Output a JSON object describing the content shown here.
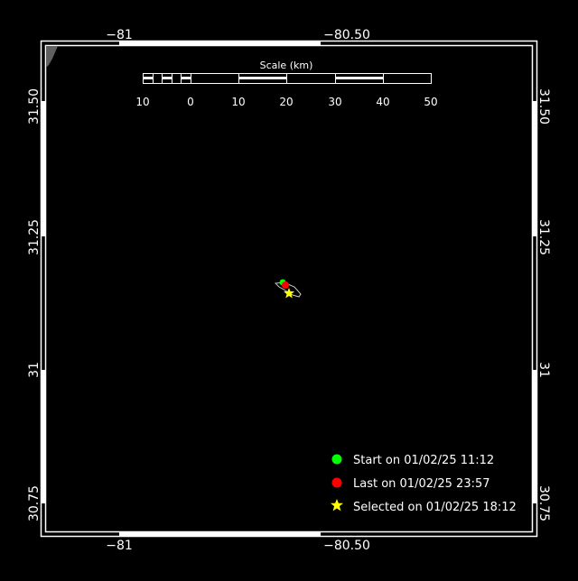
{
  "map": {
    "lon_ticks": [
      {
        "value": -81,
        "label": "−81"
      },
      {
        "value": -80.5,
        "label": "−80.50"
      }
    ],
    "lat_ticks": [
      {
        "value": 31.5,
        "label": "31.50"
      },
      {
        "value": 31.25,
        "label": "31.25"
      },
      {
        "value": 31,
        "label": "31"
      },
      {
        "value": 30.75,
        "label": "30.75"
      }
    ],
    "scale_bar": {
      "title": "Scale (km)",
      "labels": [
        "10",
        "0",
        "10",
        "20",
        "30",
        "40",
        "50"
      ]
    },
    "legend": [
      {
        "label": "Start on 01/02/25 11:12",
        "symbol": "circle",
        "color": "#00ff00"
      },
      {
        "label": "Last on 01/02/25 23:57",
        "symbol": "circle",
        "color": "#ff0000"
      },
      {
        "label": "Selected on 01/02/25 18:12",
        "symbol": "star",
        "color": "#ffff00"
      }
    ],
    "colors": {
      "background": "#000000",
      "frame": "#ffffff",
      "track": "#c8c8c8",
      "land_corner": "#606060"
    }
  }
}
